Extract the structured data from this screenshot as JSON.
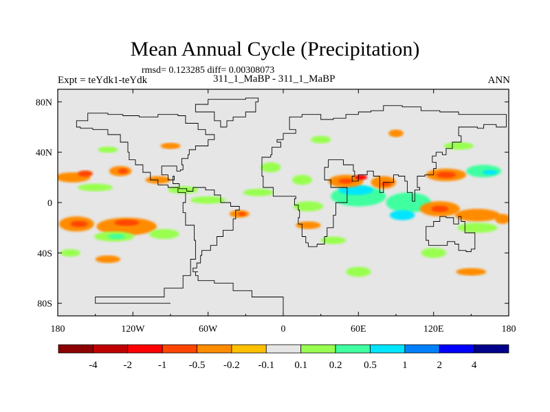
{
  "chart_data": {
    "type": "heatmap",
    "title": "Mean Annual Cycle (Precipitation)",
    "stats_line": "rmsd= 0.123285 diff= 0.00308073",
    "experiment_label": "Expt = teYdk1-teYdk",
    "cases_label": "311_1_MaBP - 311_1_MaBP",
    "season": "ANN",
    "x_ticks": [
      {
        "value": -180,
        "label": "180"
      },
      {
        "value": -120,
        "label": "120W"
      },
      {
        "value": -60,
        "label": "60W"
      },
      {
        "value": 0,
        "label": "0"
      },
      {
        "value": 60,
        "label": "60E"
      },
      {
        "value": 120,
        "label": "120E"
      },
      {
        "value": 180,
        "label": "180"
      }
    ],
    "y_ticks": [
      {
        "value": 80,
        "label": "80N"
      },
      {
        "value": 40,
        "label": "40N"
      },
      {
        "value": 0,
        "label": "0"
      },
      {
        "value": -40,
        "label": "40S"
      },
      {
        "value": -80,
        "label": "80S"
      }
    ],
    "xlim": [
      -180,
      180
    ],
    "ylim": [
      -90,
      90
    ],
    "background_color": "#e6e6e6",
    "colorbar": {
      "colors": [
        "#8b0000",
        "#c00000",
        "#ff0000",
        "#ff4500",
        "#ff8c00",
        "#ffc000",
        "#e6e6e6",
        "#98ff50",
        "#40ffa0",
        "#00e5ff",
        "#0080ff",
        "#0000ff",
        "#00008b"
      ],
      "levels": [
        "-4",
        "-2",
        "-1",
        "-0.5",
        "-0.2",
        "-0.1",
        "0.1",
        "0.2",
        "0.5",
        "1",
        "2",
        "4"
      ]
    },
    "anomaly_patches": [
      {
        "lon": -168,
        "lat": 20,
        "rx": 14,
        "ry": 4,
        "level": "-0.2"
      },
      {
        "lon": -158,
        "lat": 23,
        "rx": 6,
        "ry": 2.5,
        "level": "-0.5"
      },
      {
        "lon": -130,
        "lat": 25,
        "rx": 9,
        "ry": 4,
        "level": "-0.2"
      },
      {
        "lon": -128,
        "lat": 25,
        "rx": 4,
        "ry": 2,
        "level": "-0.5"
      },
      {
        "lon": -150,
        "lat": 12,
        "rx": 14,
        "ry": 3,
        "level": "0.1"
      },
      {
        "lon": -100,
        "lat": 18,
        "rx": 10,
        "ry": 3,
        "level": "-0.2"
      },
      {
        "lon": -80,
        "lat": 10,
        "rx": 12,
        "ry": 3,
        "level": "0.1"
      },
      {
        "lon": -60,
        "lat": 2,
        "rx": 14,
        "ry": 3,
        "level": "0.1"
      },
      {
        "lon": -165,
        "lat": -17,
        "rx": 14,
        "ry": 6,
        "level": "-0.2"
      },
      {
        "lon": -163,
        "lat": -17,
        "rx": 7,
        "ry": 2.5,
        "level": "-0.5"
      },
      {
        "lon": -125,
        "lat": -19,
        "rx": 24,
        "ry": 7,
        "level": "-0.2"
      },
      {
        "lon": -125,
        "lat": -16,
        "rx": 10,
        "ry": 2.5,
        "level": "-0.5"
      },
      {
        "lon": -135,
        "lat": -27,
        "rx": 16,
        "ry": 4,
        "level": "0.1"
      },
      {
        "lon": -133,
        "lat": -27,
        "rx": 7,
        "ry": 2,
        "level": "0.2"
      },
      {
        "lon": -95,
        "lat": -25,
        "rx": 12,
        "ry": 4,
        "level": "0.1"
      },
      {
        "lon": -170,
        "lat": -40,
        "rx": 8,
        "ry": 3,
        "level": "0.1"
      },
      {
        "lon": -140,
        "lat": -45,
        "rx": 10,
        "ry": 3,
        "level": "-0.2"
      },
      {
        "lon": -35,
        "lat": -9,
        "rx": 8,
        "ry": 3,
        "level": "-0.2"
      },
      {
        "lon": -33,
        "lat": -9,
        "rx": 3,
        "ry": 1.5,
        "level": "-0.5"
      },
      {
        "lon": -20,
        "lat": 8,
        "rx": 12,
        "ry": 3,
        "level": "0.1"
      },
      {
        "lon": -10,
        "lat": 28,
        "rx": 8,
        "ry": 4,
        "level": "0.1"
      },
      {
        "lon": 15,
        "lat": 18,
        "rx": 8,
        "ry": 4,
        "level": "0.1"
      },
      {
        "lon": 20,
        "lat": -3,
        "rx": 12,
        "ry": 4,
        "level": "0.1"
      },
      {
        "lon": 20,
        "lat": -18,
        "rx": 10,
        "ry": 3,
        "level": "-0.2"
      },
      {
        "lon": 40,
        "lat": -30,
        "rx": 10,
        "ry": 3,
        "level": "0.1"
      },
      {
        "lon": 60,
        "lat": 5,
        "rx": 22,
        "ry": 8,
        "level": "0.2"
      },
      {
        "lon": 58,
        "lat": 10,
        "rx": 14,
        "ry": 4,
        "level": "0.5"
      },
      {
        "lon": 50,
        "lat": 17,
        "rx": 14,
        "ry": 5,
        "level": "-0.2"
      },
      {
        "lon": 50,
        "lat": 17,
        "rx": 6,
        "ry": 2,
        "level": "-0.5"
      },
      {
        "lon": 80,
        "lat": 16,
        "rx": 10,
        "ry": 5,
        "level": "-0.2"
      },
      {
        "lon": 82,
        "lat": 15,
        "rx": 4,
        "ry": 2,
        "level": "-0.5"
      },
      {
        "lon": 62,
        "lat": 20,
        "rx": 5,
        "ry": 2,
        "level": "-1"
      },
      {
        "lon": 100,
        "lat": 0,
        "rx": 18,
        "ry": 8,
        "level": "0.2"
      },
      {
        "lon": 95,
        "lat": -10,
        "rx": 10,
        "ry": 4,
        "level": "0.5"
      },
      {
        "lon": 130,
        "lat": 22,
        "rx": 16,
        "ry": 5,
        "level": "-0.2"
      },
      {
        "lon": 130,
        "lat": 22,
        "rx": 8,
        "ry": 2.5,
        "level": "-0.5"
      },
      {
        "lon": 160,
        "lat": 25,
        "rx": 14,
        "ry": 5,
        "level": "0.2"
      },
      {
        "lon": 165,
        "lat": 24,
        "rx": 6,
        "ry": 2,
        "level": "0.5"
      },
      {
        "lon": 125,
        "lat": -5,
        "rx": 16,
        "ry": 6,
        "level": "-0.2"
      },
      {
        "lon": 125,
        "lat": -5,
        "rx": 7,
        "ry": 2.5,
        "level": "-0.5"
      },
      {
        "lon": 155,
        "lat": -10,
        "rx": 18,
        "ry": 5,
        "level": "-0.2"
      },
      {
        "lon": 155,
        "lat": -20,
        "rx": 16,
        "ry": 4,
        "level": "0.1"
      },
      {
        "lon": 175,
        "lat": -13,
        "rx": 6,
        "ry": 4,
        "level": "-0.2"
      },
      {
        "lon": 140,
        "lat": 45,
        "rx": 12,
        "ry": 3,
        "level": "0.1"
      },
      {
        "lon": 30,
        "lat": 50,
        "rx": 8,
        "ry": 3,
        "level": "0.1"
      },
      {
        "lon": 90,
        "lat": 55,
        "rx": 6,
        "ry": 3,
        "level": "-0.2"
      },
      {
        "lon": 120,
        "lat": -40,
        "rx": 10,
        "ry": 4,
        "level": "0.1"
      },
      {
        "lon": 60,
        "lat": -55,
        "rx": 10,
        "ry": 4,
        "level": "0.1"
      },
      {
        "lon": 150,
        "lat": -55,
        "rx": 12,
        "ry": 3,
        "level": "-0.2"
      },
      {
        "lon": -90,
        "lat": 45,
        "rx": 8,
        "ry": 2.5,
        "level": "-0.2"
      },
      {
        "lon": -140,
        "lat": 42,
        "rx": 8,
        "ry": 2.5,
        "level": "0.1"
      }
    ],
    "coastlines": [
      {
        "name": "Americas",
        "points": [
          [
            -90,
            -80
          ],
          [
            -150,
            -80
          ],
          [
            -150,
            -75
          ],
          [
            -120,
            -75
          ],
          [
            -95,
            -68
          ],
          [
            -80,
            -58
          ],
          [
            -74,
            -45
          ],
          [
            -70,
            -30
          ],
          [
            -71,
            -18
          ],
          [
            -78,
            -8
          ],
          [
            -80,
            0
          ],
          [
            -78,
            8
          ],
          [
            -84,
            12
          ],
          [
            -92,
            14
          ],
          [
            -100,
            18
          ],
          [
            -106,
            24
          ],
          [
            -112,
            30
          ],
          [
            -118,
            34
          ],
          [
            -123,
            40
          ],
          [
            -124,
            48
          ],
          [
            -130,
            54
          ],
          [
            -140,
            58
          ],
          [
            -152,
            59
          ],
          [
            -162,
            60
          ],
          [
            -165,
            65
          ],
          [
            -156,
            71
          ],
          [
            -140,
            70
          ],
          [
            -128,
            69
          ],
          [
            -115,
            68
          ],
          [
            -100,
            70
          ],
          [
            -84,
            69
          ],
          [
            -78,
            63
          ],
          [
            -68,
            58
          ],
          [
            -62,
            54
          ],
          [
            -55,
            50
          ],
          [
            -60,
            45
          ],
          [
            -67,
            45
          ],
          [
            -70,
            42
          ],
          [
            -75,
            38
          ],
          [
            -76,
            35
          ],
          [
            -81,
            30
          ],
          [
            -80,
            26
          ],
          [
            -82,
            25
          ],
          [
            -85,
            29
          ],
          [
            -90,
            29
          ],
          [
            -97,
            27
          ],
          [
            -97,
            22
          ],
          [
            -92,
            18
          ],
          [
            -87,
            21
          ],
          [
            -88,
            15
          ],
          [
            -83,
            11
          ],
          [
            -77,
            9
          ],
          [
            -72,
            12
          ],
          [
            -62,
            10
          ],
          [
            -55,
            6
          ],
          [
            -50,
            0
          ],
          [
            -42,
            -3
          ],
          [
            -35,
            -6
          ],
          [
            -38,
            -13
          ],
          [
            -40,
            -22
          ],
          [
            -48,
            -27
          ],
          [
            -53,
            -34
          ],
          [
            -58,
            -38
          ],
          [
            -65,
            -42
          ],
          [
            -66,
            -48
          ],
          [
            -69,
            -52
          ],
          [
            -72,
            -55
          ],
          [
            -68,
            -55
          ],
          [
            -70,
            -58
          ],
          [
            -68,
            -62
          ],
          [
            -55,
            -64
          ],
          [
            -40,
            -70
          ],
          [
            -25,
            -75
          ],
          [
            0,
            -80
          ],
          [
            0,
            -90
          ]
        ]
      },
      {
        "name": "Eurasia-Africa",
        "points": [
          [
            -10,
            36
          ],
          [
            -17,
            21
          ],
          [
            -16,
            12
          ],
          [
            -8,
            5
          ],
          [
            5,
            5
          ],
          [
            10,
            3
          ],
          [
            9,
            -2
          ],
          [
            12,
            -6
          ],
          [
            13,
            -12
          ],
          [
            12,
            -17
          ],
          [
            15,
            -27
          ],
          [
            18,
            -32
          ],
          [
            20,
            -35
          ],
          [
            27,
            -33
          ],
          [
            33,
            -27
          ],
          [
            35,
            -20
          ],
          [
            40,
            -15
          ],
          [
            40,
            -10
          ],
          [
            42,
            0
          ],
          [
            51,
            12
          ],
          [
            43,
            12
          ],
          [
            38,
            18
          ],
          [
            33,
            28
          ],
          [
            36,
            34
          ],
          [
            48,
            30
          ],
          [
            56,
            25
          ],
          [
            57,
            21
          ],
          [
            55,
            17
          ],
          [
            60,
            22
          ],
          [
            67,
            25
          ],
          [
            72,
            21
          ],
          [
            77,
            8
          ],
          [
            80,
            16
          ],
          [
            88,
            22
          ],
          [
            92,
            21
          ],
          [
            97,
            17
          ],
          [
            99,
            8
          ],
          [
            103,
            1
          ],
          [
            105,
            10
          ],
          [
            109,
            12
          ],
          [
            107,
            21
          ],
          [
            113,
            22
          ],
          [
            120,
            27
          ],
          [
            122,
            32
          ],
          [
            119,
            37
          ],
          [
            122,
            40
          ],
          [
            127,
            38
          ],
          [
            130,
            43
          ],
          [
            135,
            48
          ],
          [
            142,
            53
          ],
          [
            140,
            60
          ],
          [
            155,
            59
          ],
          [
            160,
            62
          ],
          [
            170,
            60
          ],
          [
            178,
            65
          ],
          [
            178,
            70
          ],
          [
            160,
            70
          ],
          [
            140,
            72
          ],
          [
            125,
            73
          ],
          [
            110,
            76
          ],
          [
            95,
            77
          ],
          [
            80,
            73
          ],
          [
            70,
            72
          ],
          [
            60,
            70
          ],
          [
            50,
            67
          ],
          [
            40,
            66
          ],
          [
            30,
            70
          ],
          [
            15,
            68
          ],
          [
            5,
            62
          ],
          [
            5,
            58
          ],
          [
            10,
            55
          ],
          [
            0,
            50
          ],
          [
            -5,
            48
          ],
          [
            -2,
            44
          ],
          [
            -9,
            43
          ],
          [
            -9,
            38
          ],
          [
            -10,
            36
          ]
        ]
      },
      {
        "name": "Australia",
        "points": [
          [
            114,
            -22
          ],
          [
            114,
            -30
          ],
          [
            116,
            -34
          ],
          [
            123,
            -34
          ],
          [
            131,
            -31
          ],
          [
            137,
            -33
          ],
          [
            140,
            -38
          ],
          [
            146,
            -39
          ],
          [
            150,
            -37
          ],
          [
            153,
            -28
          ],
          [
            153,
            -24
          ],
          [
            145,
            -15
          ],
          [
            142,
            -11
          ],
          [
            140,
            -17
          ],
          [
            136,
            -12
          ],
          [
            130,
            -11
          ],
          [
            125,
            -15
          ],
          [
            120,
            -19
          ],
          [
            114,
            -22
          ]
        ]
      },
      {
        "name": "Greenland",
        "points": [
          [
            -45,
            60
          ],
          [
            -50,
            65
          ],
          [
            -55,
            72
          ],
          [
            -70,
            78
          ],
          [
            -60,
            82
          ],
          [
            -30,
            83
          ],
          [
            -20,
            80
          ],
          [
            -22,
            72
          ],
          [
            -30,
            68
          ],
          [
            -40,
            65
          ],
          [
            -45,
            60
          ]
        ]
      }
    ]
  }
}
